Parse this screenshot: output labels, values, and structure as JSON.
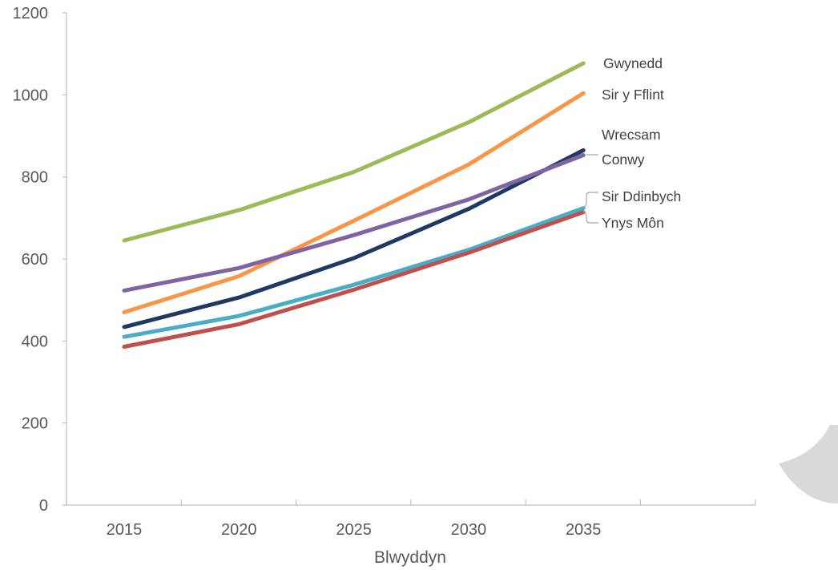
{
  "chart_data": {
    "type": "line",
    "title": "",
    "xlabel": "Blwyddyn",
    "ylabel": "",
    "ylim": [
      0,
      1200
    ],
    "yticks": [
      0,
      200,
      400,
      600,
      800,
      1000,
      1200
    ],
    "x": [
      2015,
      2020,
      2025,
      2030,
      2035
    ],
    "grid": false,
    "legend": "direct labels at line ends (right)",
    "series": [
      {
        "name": "Gwynedd",
        "color": "#9BBB59",
        "values": [
          645,
          719,
          812,
          933,
          1077
        ]
      },
      {
        "name": "Sir y Fflint",
        "color": "#F79646",
        "values": [
          470,
          558,
          693,
          830,
          1004
        ]
      },
      {
        "name": "Wrecsam",
        "color": "#1F3864",
        "values": [
          434,
          506,
          602,
          722,
          865
        ]
      },
      {
        "name": "Conwy",
        "color": "#8064A2",
        "values": [
          523,
          578,
          658,
          745,
          853
        ]
      },
      {
        "name": "Sir Ddinbych",
        "color": "#4BACC6",
        "values": [
          410,
          461,
          537,
          622,
          724
        ]
      },
      {
        "name": "Ynys Môn",
        "color": "#C0504D",
        "values": [
          386,
          441,
          525,
          615,
          714
        ]
      }
    ]
  }
}
